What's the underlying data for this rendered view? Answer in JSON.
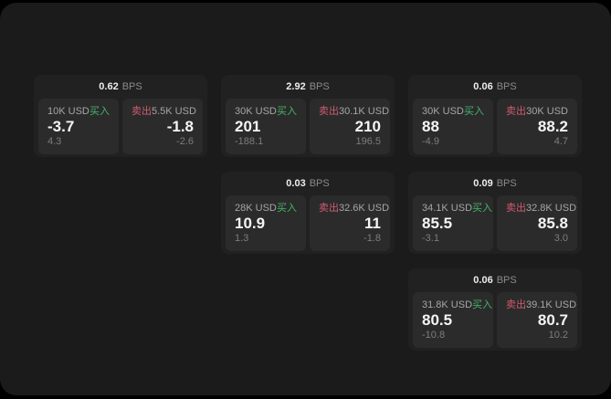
{
  "labels": {
    "bps_unit": "BPS",
    "buy": "买入",
    "sell": "卖出"
  },
  "colors": {
    "background": "#000000",
    "window_bg": "#1b1b1b",
    "card_bg": "#212121",
    "panel_bg": "#2b2b2b",
    "buy_green": "#46b36a",
    "sell_red": "#d25a70",
    "value_white": "#f5f5f5",
    "label_gray": "#a6a6a6",
    "delta_gray": "#7d7d7d"
  },
  "cards": [
    {
      "bps": "0.62",
      "buy": {
        "amount": "10K USD",
        "value": "-3.7",
        "delta": "4.3"
      },
      "sell": {
        "amount": "5.5K USD",
        "value": "-1.8",
        "delta": "-2.6"
      }
    },
    {
      "bps": "2.92",
      "buy": {
        "amount": "30K USD",
        "value": "201",
        "delta": "-188.1"
      },
      "sell": {
        "amount": "30.1K USD",
        "value": "210",
        "delta": "196.5"
      }
    },
    {
      "bps": "0.06",
      "buy": {
        "amount": "30K USD",
        "value": "88",
        "delta": "-4.9"
      },
      "sell": {
        "amount": "30K USD",
        "value": "88.2",
        "delta": "4.7"
      }
    },
    {
      "bps": "0.03",
      "buy": {
        "amount": "28K USD",
        "value": "10.9",
        "delta": "1.3"
      },
      "sell": {
        "amount": "32.6K USD",
        "value": "11",
        "delta": "-1.8"
      }
    },
    {
      "bps": "0.09",
      "buy": {
        "amount": "34.1K USD",
        "value": "85.5",
        "delta": "-3.1"
      },
      "sell": {
        "amount": "32.8K USD",
        "value": "85.8",
        "delta": "3.0"
      }
    },
    {
      "bps": "0.06",
      "buy": {
        "amount": "31.8K USD",
        "value": "80.5",
        "delta": "-10.8"
      },
      "sell": {
        "amount": "39.1K USD",
        "value": "80.7",
        "delta": "10.2"
      }
    }
  ]
}
